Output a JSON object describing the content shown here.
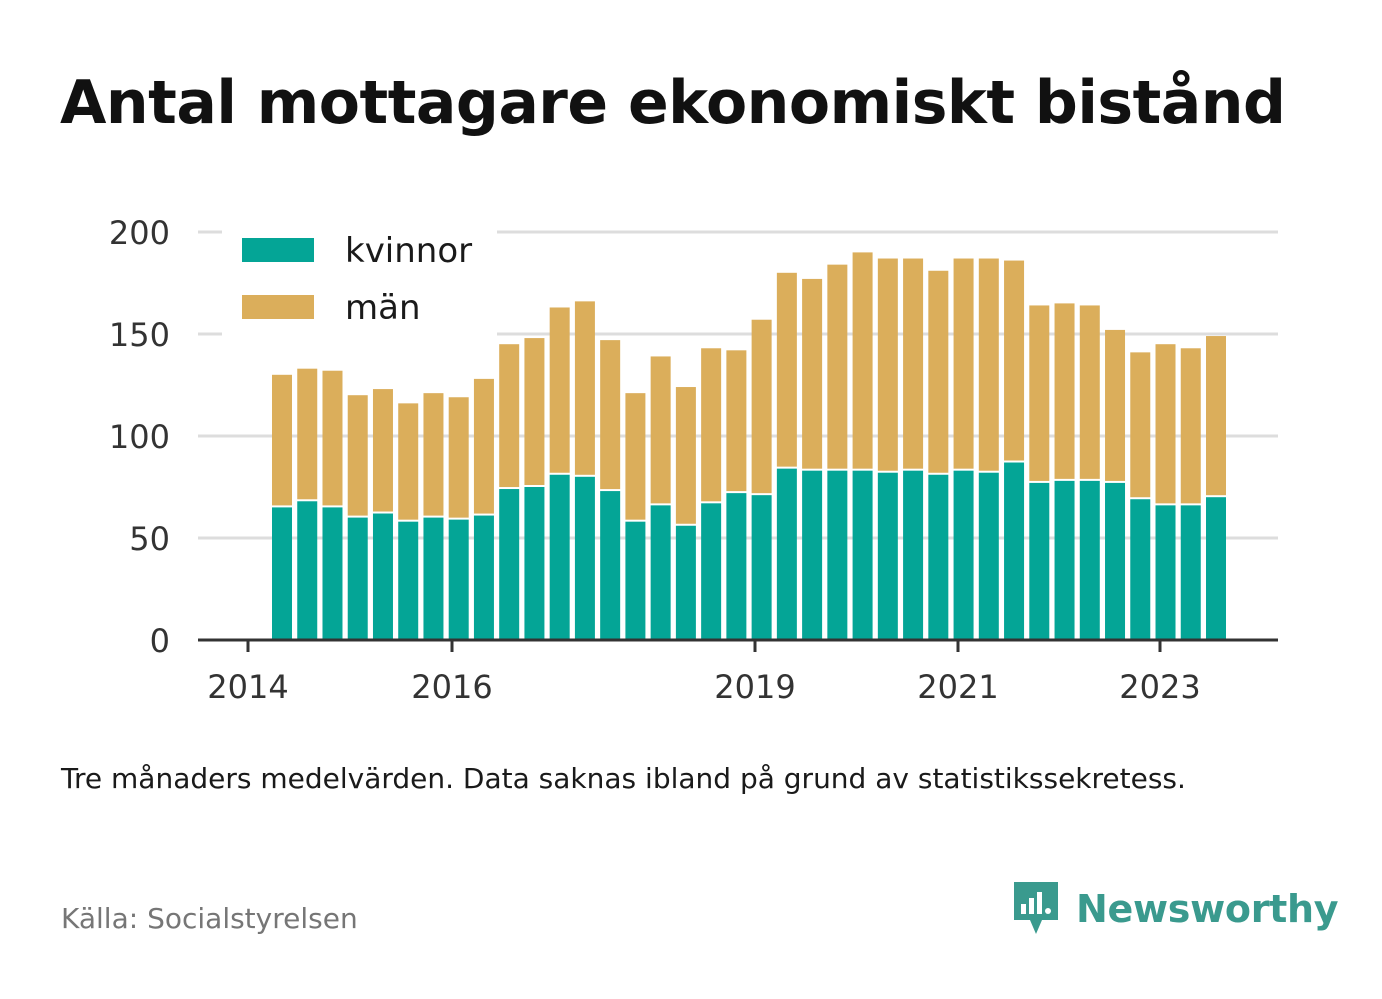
{
  "title": "Antal mottagare ekonomiskt bistånd",
  "note": "Tre månaders medelvärden. Data saknas ibland på grund av statistikssekretess.",
  "source": "Källa: Socialstyrelsen",
  "brand": "Newsworthy",
  "colors": {
    "kvinnor": "#04a596",
    "man": "#dbae5b",
    "grid": "#dddddd",
    "axis": "#333333",
    "brand": "#3a9a8e"
  },
  "chart_data": {
    "type": "bar",
    "stacked": true,
    "ylim": [
      0,
      200
    ],
    "yticks": [
      0,
      50,
      100,
      150,
      200
    ],
    "x_tick_labels": [
      "2014",
      "2016",
      "2019",
      "2021",
      "2023"
    ],
    "grid": true,
    "legend_position": "top-left",
    "series": [
      {
        "name": "kvinnor",
        "values": [
          65,
          68,
          65,
          60,
          62,
          58,
          60,
          59,
          61,
          74,
          75,
          81,
          80,
          73,
          58,
          66,
          56,
          67,
          72,
          71,
          84,
          83,
          83,
          83,
          82,
          83,
          81,
          83,
          82,
          87,
          77,
          78,
          78,
          77,
          69,
          66,
          66,
          70
        ]
      },
      {
        "name": "män",
        "values": [
          65,
          65,
          67,
          60,
          61,
          58,
          61,
          60,
          67,
          71,
          73,
          82,
          86,
          74,
          63,
          73,
          68,
          76,
          70,
          86,
          96,
          94,
          101,
          107,
          105,
          104,
          100,
          104,
          105,
          99,
          87,
          87,
          86,
          75,
          72,
          79,
          77,
          79
        ]
      }
    ]
  }
}
